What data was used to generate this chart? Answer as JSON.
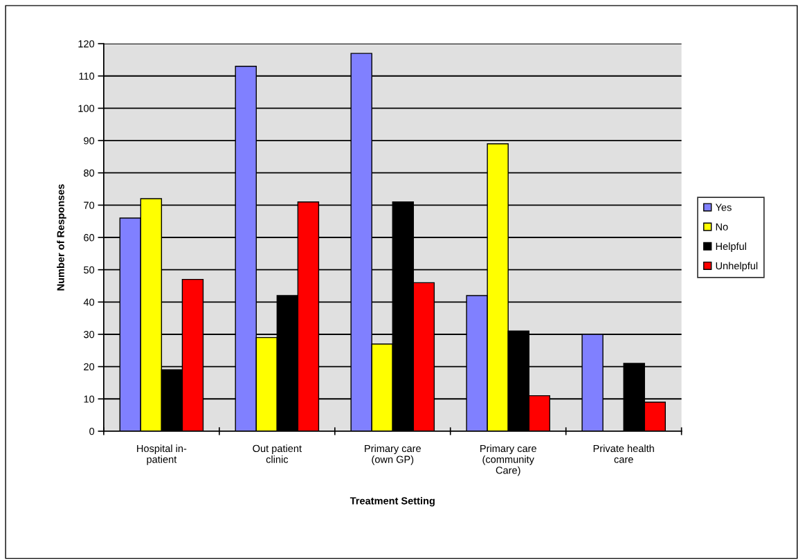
{
  "chart_data": {
    "type": "bar",
    "xlabel": "Treatment Setting",
    "ylabel": "Number of Responses",
    "categories": [
      "Hospital in-\npatient",
      "Out patient\nclinic",
      "Primary care\n(own GP)",
      "Primary care\n(community\nCare)",
      "Private health\ncare"
    ],
    "series": [
      {
        "name": "Yes",
        "color": "#8080ff",
        "values": [
          66,
          113,
          117,
          42,
          30
        ]
      },
      {
        "name": "No",
        "color": "#ffff00",
        "values": [
          72,
          29,
          27,
          89,
          null
        ]
      },
      {
        "name": "Helpful",
        "color": "#000000",
        "values": [
          19,
          42,
          71,
          31,
          21
        ]
      },
      {
        "name": "Unhelpful",
        "color": "#ff0000",
        "values": [
          47,
          71,
          46,
          11,
          9
        ]
      }
    ],
    "ylim": [
      0,
      120
    ],
    "yticks": [
      0,
      10,
      20,
      30,
      40,
      50,
      60,
      70,
      80,
      90,
      100,
      110,
      120
    ],
    "grid": "y",
    "legend": "right"
  }
}
